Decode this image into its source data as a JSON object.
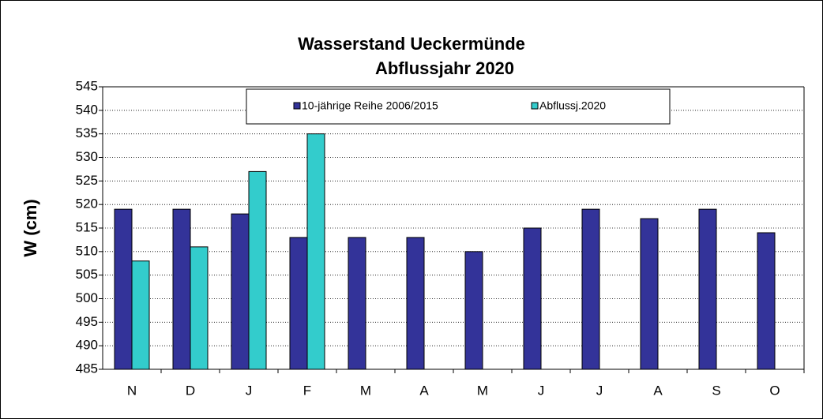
{
  "chart_data": {
    "type": "bar",
    "title": "Wasserstand Ueckermünde",
    "subtitle": "Abflussjahr 2020",
    "y_label": "W (cm)",
    "categories": [
      "N",
      "D",
      "J",
      "F",
      "M",
      "A",
      "M",
      "J",
      "J",
      "A",
      "S",
      "O"
    ],
    "series": [
      {
        "name": "10-jährige Reihe  2006/2015",
        "color": "#333399",
        "values": [
          519,
          519,
          518,
          513,
          513,
          513,
          510,
          515,
          519,
          517,
          519,
          514
        ]
      },
      {
        "name": "Abflussj.2020",
        "color": "#33cccc",
        "values": [
          508,
          511,
          527,
          535,
          null,
          null,
          null,
          null,
          null,
          null,
          null,
          null
        ]
      }
    ],
    "ylim": [
      485,
      545
    ],
    "yticks": [
      485,
      490,
      495,
      500,
      505,
      510,
      515,
      520,
      525,
      530,
      535,
      540,
      545
    ],
    "grid": true,
    "legend": "top"
  }
}
